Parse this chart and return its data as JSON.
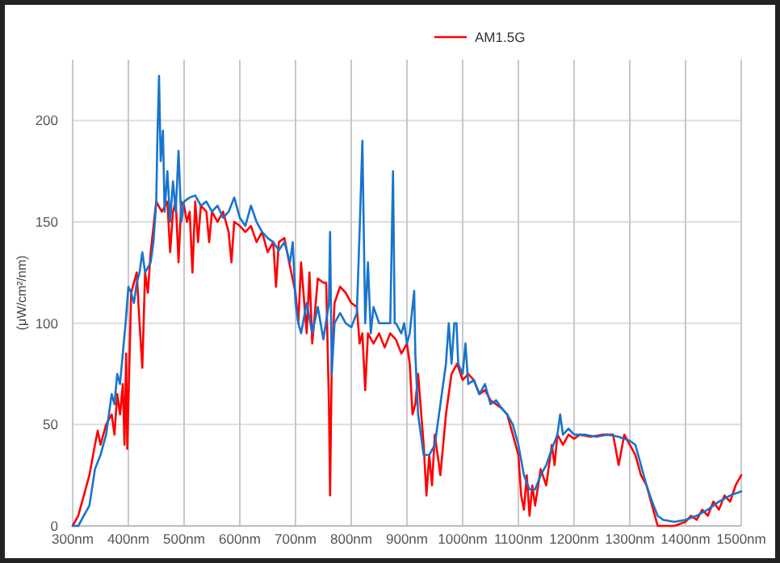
{
  "chart_data": {
    "type": "line",
    "ylabel": "(μW/cm²/nm)",
    "xlim": [
      300,
      1500
    ],
    "ylim": [
      0,
      230
    ],
    "xticks": [
      {
        "value": 300,
        "label": "300nm"
      },
      {
        "value": 400,
        "label": "400nm"
      },
      {
        "value": 500,
        "label": "500nm"
      },
      {
        "value": 600,
        "label": "600nm"
      },
      {
        "value": 700,
        "label": "700nm"
      },
      {
        "value": 800,
        "label": "800nm"
      },
      {
        "value": 900,
        "label": "900nm"
      },
      {
        "value": 1000,
        "label": "1000nm"
      },
      {
        "value": 1100,
        "label": "1100nm"
      },
      {
        "value": 1200,
        "label": "1200nm"
      },
      {
        "value": 1300,
        "label": "1300nm"
      },
      {
        "value": 1400,
        "label": "1400nm"
      },
      {
        "value": 1500,
        "label": "1500nm"
      }
    ],
    "yticks": [
      0,
      50,
      100,
      150,
      200
    ],
    "grid": true,
    "legend": "top right",
    "marker": "none",
    "line_style": "solid",
    "series": [
      {
        "name": "AM1.5G",
        "color": "#ff0000",
        "x": [
          300,
          310,
          320,
          330,
          340,
          345,
          350,
          355,
          360,
          370,
          375,
          380,
          385,
          390,
          393,
          396,
          398,
          400,
          405,
          410,
          415,
          420,
          425,
          430,
          435,
          440,
          450,
          460,
          470,
          475,
          480,
          485,
          490,
          495,
          500,
          505,
          510,
          515,
          520,
          525,
          530,
          540,
          545,
          550,
          560,
          570,
          580,
          585,
          590,
          600,
          610,
          620,
          630,
          640,
          650,
          660,
          665,
          670,
          680,
          690,
          700,
          705,
          710,
          720,
          725,
          730,
          740,
          750,
          755,
          760,
          762,
          765,
          770,
          780,
          790,
          800,
          810,
          815,
          820,
          825,
          830,
          840,
          850,
          860,
          870,
          880,
          890,
          900,
          905,
          910,
          915,
          920,
          930,
          935,
          940,
          945,
          950,
          960,
          970,
          980,
          990,
          1000,
          1010,
          1020,
          1030,
          1040,
          1050,
          1060,
          1070,
          1080,
          1090,
          1100,
          1105,
          1110,
          1115,
          1120,
          1125,
          1130,
          1140,
          1150,
          1160,
          1165,
          1170,
          1180,
          1190,
          1200,
          1210,
          1230,
          1250,
          1270,
          1280,
          1290,
          1300,
          1310,
          1320,
          1330,
          1340,
          1350,
          1360,
          1380,
          1400,
          1410,
          1420,
          1430,
          1440,
          1450,
          1460,
          1470,
          1480,
          1490,
          1500
        ],
        "values": [
          0,
          5,
          15,
          25,
          40,
          47,
          40,
          45,
          50,
          55,
          45,
          65,
          55,
          70,
          40,
          85,
          38,
          60,
          115,
          120,
          125,
          100,
          78,
          125,
          115,
          135,
          160,
          155,
          160,
          135,
          155,
          160,
          130,
          160,
          158,
          150,
          155,
          125,
          160,
          140,
          158,
          155,
          140,
          155,
          150,
          155,
          145,
          130,
          150,
          148,
          145,
          148,
          140,
          145,
          135,
          140,
          118,
          140,
          142,
          128,
          115,
          100,
          130,
          95,
          125,
          90,
          122,
          120,
          120,
          60,
          15,
          80,
          110,
          118,
          115,
          110,
          108,
          90,
          95,
          67,
          95,
          90,
          95,
          88,
          95,
          92,
          85,
          90,
          80,
          55,
          60,
          75,
          40,
          15,
          35,
          20,
          45,
          25,
          55,
          75,
          80,
          72,
          75,
          72,
          65,
          67,
          62,
          60,
          58,
          55,
          45,
          35,
          15,
          8,
          25,
          5,
          20,
          10,
          28,
          20,
          40,
          30,
          45,
          40,
          45,
          43,
          45,
          44,
          45,
          45,
          30,
          45,
          40,
          35,
          25,
          20,
          10,
          0,
          0,
          0,
          2,
          5,
          3,
          8,
          5,
          12,
          8,
          15,
          12,
          20,
          25
        ]
      },
      {
        "color": "#1874cd",
        "x": [
          300,
          310,
          320,
          330,
          340,
          350,
          360,
          365,
          370,
          375,
          380,
          385,
          390,
          395,
          400,
          405,
          410,
          415,
          420,
          425,
          430,
          440,
          445,
          450,
          452,
          455,
          458,
          462,
          465,
          470,
          475,
          480,
          485,
          490,
          495,
          500,
          510,
          520,
          530,
          540,
          550,
          560,
          570,
          580,
          590,
          600,
          610,
          620,
          630,
          640,
          650,
          660,
          670,
          680,
          690,
          695,
          700,
          705,
          710,
          720,
          730,
          740,
          750,
          760,
          762,
          765,
          770,
          780,
          790,
          800,
          810,
          815,
          820,
          825,
          830,
          835,
          840,
          850,
          860,
          870,
          875,
          878,
          880,
          890,
          895,
          900,
          905,
          913,
          915,
          920,
          930,
          940,
          950,
          960,
          970,
          975,
          980,
          985,
          989,
          992,
          1000,
          1005,
          1010,
          1020,
          1030,
          1040,
          1050,
          1060,
          1070,
          1080,
          1090,
          1100,
          1110,
          1120,
          1130,
          1140,
          1150,
          1160,
          1170,
          1175,
          1180,
          1190,
          1200,
          1220,
          1240,
          1260,
          1280,
          1300,
          1310,
          1320,
          1330,
          1340,
          1350,
          1360,
          1380,
          1400,
          1420,
          1440,
          1460,
          1480,
          1500
        ],
        "values": [
          0,
          0,
          5,
          10,
          28,
          35,
          45,
          55,
          65,
          60,
          75,
          70,
          85,
          100,
          118,
          115,
          110,
          120,
          125,
          135,
          125,
          130,
          140,
          160,
          190,
          222,
          180,
          195,
          155,
          175,
          150,
          170,
          155,
          185,
          150,
          160,
          162,
          163,
          158,
          160,
          155,
          158,
          152,
          155,
          162,
          152,
          148,
          158,
          150,
          145,
          142,
          140,
          136,
          140,
          130,
          140,
          110,
          100,
          95,
          110,
          95,
          108,
          92,
          110,
          145,
          75,
          100,
          105,
          100,
          98,
          105,
          145,
          190,
          100,
          130,
          95,
          108,
          100,
          100,
          100,
          175,
          100,
          100,
          95,
          100,
          90,
          95,
          116,
          85,
          55,
          35,
          35,
          40,
          60,
          80,
          100,
          80,
          100,
          100,
          80,
          75,
          90,
          70,
          72,
          65,
          70,
          60,
          62,
          58,
          55,
          50,
          40,
          25,
          18,
          18,
          25,
          30,
          38,
          45,
          55,
          45,
          48,
          45,
          45,
          44,
          45,
          44,
          42,
          40,
          30,
          20,
          12,
          5,
          3,
          2,
          3,
          5,
          8,
          12,
          15,
          17
        ]
      }
    ]
  }
}
